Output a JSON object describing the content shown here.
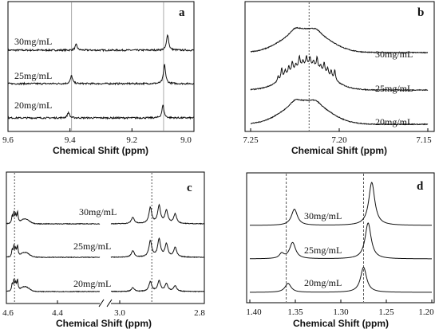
{
  "chart_data": [
    {
      "panel": "a",
      "type": "line",
      "xlabel": "Chemical Shift (ppm)",
      "xlim": [
        9.6,
        9.0
      ],
      "x_ticks": [
        "9.6",
        "9.4",
        "9.2",
        "9.0"
      ],
      "reference_lines": [
        9.395,
        9.098
      ],
      "series": [
        {
          "name": "30mg/mL",
          "peaks": [
            {
              "ppm": 9.38,
              "height": 0.35
            },
            {
              "ppm": 9.085,
              "height": 1.0
            }
          ]
        },
        {
          "name": "25mg/mL",
          "peaks": [
            {
              "ppm": 9.395,
              "height": 0.5
            },
            {
              "ppm": 9.095,
              "height": 1.2
            }
          ]
        },
        {
          "name": "20mg/mL",
          "peaks": [
            {
              "ppm": 9.405,
              "height": 0.35
            },
            {
              "ppm": 9.1,
              "height": 0.8
            }
          ]
        }
      ]
    },
    {
      "panel": "b",
      "type": "line",
      "xlabel": "Chemical Shift (ppm)",
      "xlim": [
        7.25,
        7.15
      ],
      "x_ticks": [
        "7.25",
        "7.20",
        "7.15"
      ],
      "reference_lines": [
        7.217
      ],
      "series": [
        {
          "name": "30mg/mL",
          "center_ppm": 7.217,
          "pattern": "broad"
        },
        {
          "name": "25mg/mL",
          "center_ppm": 7.217,
          "pattern": "resolved multiplet"
        },
        {
          "name": "20mg/mL",
          "center_ppm": 7.217,
          "pattern": "broad"
        }
      ]
    },
    {
      "panel": "c",
      "type": "line",
      "xlabel": "Chemical Shift (ppm)",
      "xlim": [
        4.6,
        2.8
      ],
      "axis_break": true,
      "x_ticks": [
        "4.6",
        "4.4",
        "3.0",
        "2.8"
      ],
      "reference_lines": [
        4.53,
        2.98
      ],
      "series": [
        {
          "name": "30mg/mL"
        },
        {
          "name": "25mg/mL"
        },
        {
          "name": "20mg/mL"
        }
      ]
    },
    {
      "panel": "d",
      "type": "line",
      "xlabel": "Chemical Shift (ppm)",
      "xlim": [
        1.4,
        1.2
      ],
      "x_ticks": [
        "1.40",
        "1.35",
        "1.30",
        "1.25",
        "1.20"
      ],
      "reference_lines": [
        1.36,
        1.275
      ],
      "series": [
        {
          "name": "30mg/mL",
          "peaks": [
            {
              "ppm": 1.351,
              "height": 0.45
            },
            {
              "ppm": 1.266,
              "height": 1.2
            }
          ]
        },
        {
          "name": "25mg/mL",
          "peaks": [
            {
              "ppm": 1.353,
              "height": 0.45
            },
            {
              "ppm": 1.27,
              "height": 1.0
            }
          ]
        },
        {
          "name": "20mg/mL",
          "peaks": [
            {
              "ppm": 1.358,
              "height": 0.25
            },
            {
              "ppm": 1.275,
              "height": 0.7
            }
          ]
        }
      ]
    }
  ]
}
